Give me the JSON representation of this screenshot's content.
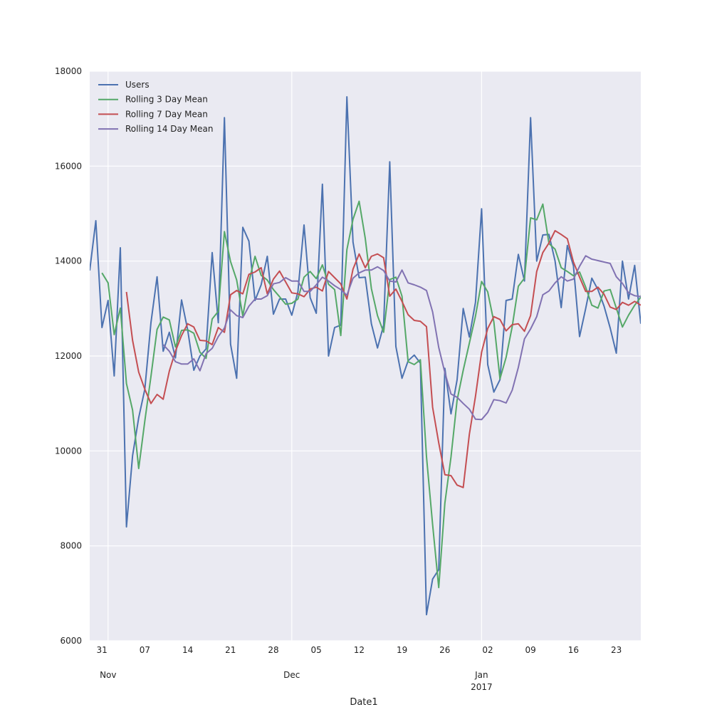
{
  "chart_data": {
    "type": "line",
    "title": "",
    "xlabel": "Date1",
    "ylabel": "",
    "ylim": [
      6000,
      18000
    ],
    "xlim": [
      "2016-10-29",
      "2017-01-27"
    ],
    "grid": true,
    "legend_position": "top-left",
    "yticks": [
      6000,
      8000,
      10000,
      12000,
      14000,
      16000,
      18000
    ],
    "x_minor_ticks": [
      {
        "date": "2016-10-31",
        "label": "31"
      },
      {
        "date": "2016-11-07",
        "label": "07"
      },
      {
        "date": "2016-11-14",
        "label": "14"
      },
      {
        "date": "2016-11-21",
        "label": "21"
      },
      {
        "date": "2016-11-28",
        "label": "28"
      },
      {
        "date": "2016-12-05",
        "label": "05"
      },
      {
        "date": "2016-12-12",
        "label": "12"
      },
      {
        "date": "2016-12-19",
        "label": "19"
      },
      {
        "date": "2016-12-26",
        "label": "26"
      },
      {
        "date": "2017-01-02",
        "label": "02"
      },
      {
        "date": "2017-01-09",
        "label": "09"
      },
      {
        "date": "2017-01-16",
        "label": "16"
      },
      {
        "date": "2017-01-23",
        "label": "23"
      }
    ],
    "x_major_ticks": [
      {
        "date": "2016-11-01",
        "label": "Nov",
        "sublabel": ""
      },
      {
        "date": "2016-12-01",
        "label": "Dec",
        "sublabel": ""
      },
      {
        "date": "2017-01-01",
        "label": "Jan",
        "sublabel": "2017"
      }
    ],
    "series": [
      {
        "name": "Users",
        "color": "#4c72b0",
        "start_date": "2016-10-29",
        "values": [
          13800,
          14850,
          12600,
          13170,
          11580,
          14280,
          8400,
          9900,
          10700,
          11300,
          12700,
          13670,
          12100,
          12500,
          11960,
          13180,
          12550,
          11700,
          12000,
          12150,
          14180,
          12700,
          17020,
          12250,
          11530,
          14710,
          14420,
          13170,
          13500,
          14100,
          12880,
          13200,
          13200,
          12860,
          13350,
          14760,
          13230,
          12900,
          15620,
          12000,
          12600,
          12650,
          17460,
          14400,
          13650,
          13660,
          12680,
          12170,
          12650,
          16090,
          12200,
          11530,
          11900,
          12020,
          11850,
          6550,
          7300,
          7500,
          11740,
          10780,
          11500,
          13000,
          12400,
          13130,
          15100,
          11820,
          11240,
          11500,
          13170,
          13200,
          14140,
          13580,
          17020,
          14000,
          14550,
          14560,
          14000,
          13020,
          14330,
          13900,
          12410,
          13000,
          13640,
          13400,
          13050,
          12590,
          12060,
          14000,
          13200,
          13910,
          12680
        ]
      },
      {
        "name": "Rolling 3 Day Mean",
        "color": "#55a868",
        "start_date": "2016-10-31",
        "values": [
          13750,
          13540,
          12450,
          13010,
          11420,
          10860,
          9630,
          10630,
          11570,
          12560,
          12820,
          12760,
          12190,
          12540,
          12550,
          12480,
          12080,
          11950,
          12780,
          12940,
          14620,
          13990,
          13600,
          12840,
          13560,
          14100,
          13700,
          13600,
          13400,
          13250,
          13090,
          13110,
          13200,
          13660,
          13780,
          13630,
          13920,
          13510,
          13400,
          12430,
          14240,
          14880,
          15260,
          14480,
          13420,
          12850,
          12500,
          13610,
          13660,
          13260,
          11880,
          11820,
          11920,
          9880,
          8450,
          7120,
          8900,
          9870,
          11070,
          11700,
          12270,
          12840,
          13570,
          13350,
          12720,
          11520,
          11970,
          12620,
          13470,
          13640,
          14910,
          14870,
          15200,
          14370,
          14250,
          13860,
          13780,
          13690,
          13770,
          13450,
          13070,
          13010,
          13370,
          13400,
          13010,
          12610,
          12860,
          13070,
          13240,
          13700,
          13260
        ]
      },
      {
        "name": "Rolling 7 Day Mean",
        "color": "#c44e52",
        "start_date": "2016-11-04",
        "values": [
          13350,
          12330,
          11660,
          11300,
          11000,
          11190,
          11090,
          11680,
          12100,
          12430,
          12680,
          12610,
          12330,
          12320,
          12240,
          12600,
          12500,
          13290,
          13380,
          13310,
          13720,
          13770,
          13860,
          13310,
          13620,
          13790,
          13560,
          13330,
          13310,
          13250,
          13410,
          13450,
          13370,
          13780,
          13650,
          13520,
          13200,
          13830,
          14150,
          13860,
          14100,
          14150,
          14070,
          13260,
          13410,
          13150,
          12870,
          12750,
          12730,
          12620,
          10920,
          10170,
          9500,
          9480,
          9280,
          9230,
          10350,
          11150,
          12080,
          12580,
          12830,
          12770,
          12530,
          12660,
          12680,
          12520,
          12850,
          13780,
          14180,
          14380,
          14640,
          14560,
          14470,
          13980,
          13660,
          13360,
          13360,
          13450,
          13300,
          13030,
          12980,
          13130,
          13070,
          13150,
          13070
        ]
      },
      {
        "name": "Rolling 14 Day Mean",
        "color": "#8172b2",
        "start_date": "2016-11-10",
        "values": [
          12240,
          12100,
          11880,
          11830,
          11830,
          11940,
          11690,
          12050,
          12160,
          12410,
          12590,
          12970,
          12850,
          12810,
          13050,
          13200,
          13200,
          13270,
          13520,
          13550,
          13650,
          13580,
          13580,
          13360,
          13360,
          13500,
          13660,
          13580,
          13480,
          13400,
          13280,
          13640,
          13750,
          13810,
          13810,
          13880,
          13800,
          13580,
          13560,
          13810,
          13540,
          13500,
          13450,
          13380,
          12930,
          12180,
          11650,
          11200,
          11130,
          11000,
          10880,
          10670,
          10660,
          10810,
          11080,
          11060,
          11010,
          11280,
          11760,
          12360,
          12570,
          12830,
          13290,
          13370,
          13540,
          13670,
          13580,
          13620,
          13890,
          14110,
          14040,
          14010,
          13980,
          13950,
          13670,
          13530,
          13330,
          13270,
          13250,
          13300,
          13260,
          13170
        ]
      }
    ]
  }
}
